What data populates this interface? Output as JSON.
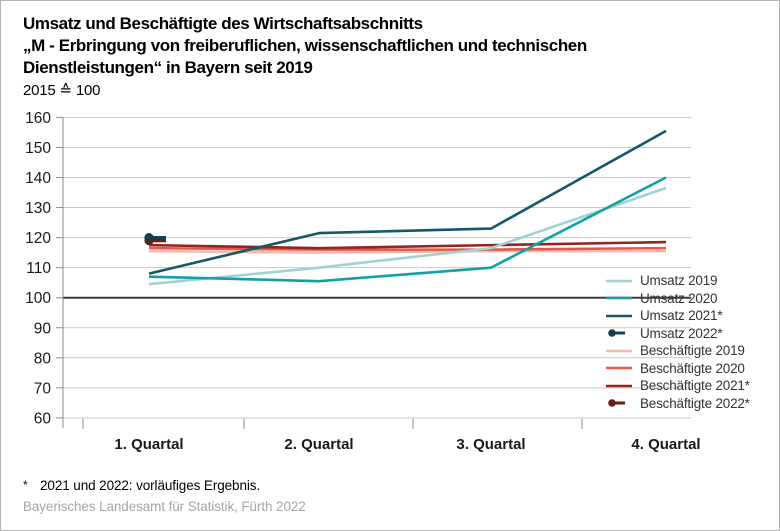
{
  "header": {
    "title_line1": "Umsatz und Beschäftigte des Wirtschaftsabschnitts",
    "title_line2": "„M - Erbringung von freiberuflichen, wissenschaftlichen und technischen",
    "title_line3": "Dienstleistungen“ in Bayern seit 2019",
    "subtitle": "2015 ≙ 100"
  },
  "chart_data": {
    "type": "line",
    "categories": [
      "1. Quartal",
      "2. Quartal",
      "3. Quartal",
      "4. Quartal"
    ],
    "series": [
      {
        "name": "Umsatz 2019",
        "values": [
          104.5,
          110,
          116.5,
          136.5
        ],
        "color": "#9fd3d3",
        "style": "line"
      },
      {
        "name": "Umsatz 2020",
        "values": [
          107,
          105.5,
          110,
          140
        ],
        "color": "#13a0a5",
        "style": "line"
      },
      {
        "name": "Umsatz 2021*",
        "values": [
          108,
          121.5,
          123,
          155.5
        ],
        "color": "#14586a",
        "style": "line"
      },
      {
        "name": "Umsatz 2022*",
        "values": [
          120,
          null,
          null,
          null
        ],
        "color": "#143f4c",
        "style": "dot"
      },
      {
        "name": "Beschäftigte 2019",
        "values": [
          115.5,
          115,
          115.5,
          115.5
        ],
        "color": "#f4b9ac",
        "style": "line"
      },
      {
        "name": "Beschäftigte 2020",
        "values": [
          116.5,
          116,
          116,
          116.5
        ],
        "color": "#e2584b",
        "style": "line"
      },
      {
        "name": "Beschäftigte 2021*",
        "values": [
          117.5,
          116.5,
          117.5,
          118.5
        ],
        "color": "#93241f",
        "style": "line"
      },
      {
        "name": "Beschäftigte 2022*",
        "values": [
          119,
          null,
          null,
          null
        ],
        "color": "#6b1d15",
        "style": "dot"
      }
    ],
    "draw_order": [
      4,
      5,
      6,
      7,
      0,
      1,
      2,
      3
    ],
    "ylim": [
      60,
      160
    ],
    "ytick_step": 10,
    "yticks": [
      60,
      70,
      80,
      90,
      100,
      110,
      120,
      130,
      140,
      150,
      160
    ],
    "reference_line": 100,
    "grid": "horizontal",
    "legend_position": "inside-right",
    "colors": {
      "grid": "#c9c9c9",
      "reference": "#3d3d3d",
      "axis": "#8a8a8a",
      "tick_label": "#1a1a1a"
    }
  },
  "footer": {
    "footnote_marker": "*",
    "footnote_text": "2021 und 2022: vorläufiges Ergebnis.",
    "source": "Bayerisches Landesamt für Statistik, Fürth 2022"
  }
}
